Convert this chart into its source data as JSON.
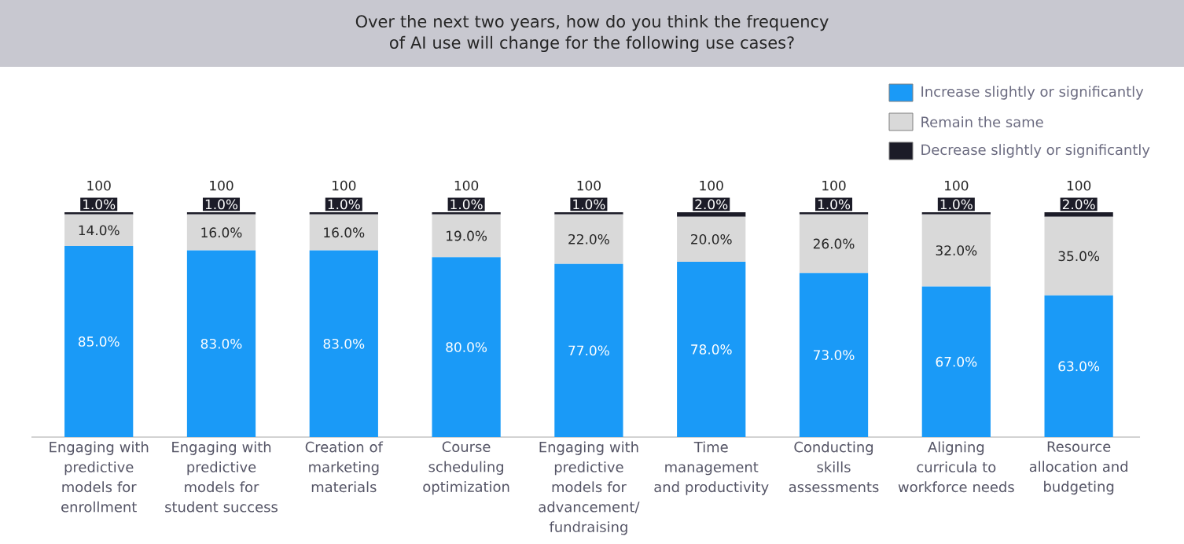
{
  "chart_data": {
    "type": "bar",
    "stacked": true,
    "title": "Over the next two years, how do you think the frequency of AI use will change for the following use cases?",
    "categories": [
      "Engaging with predictive models for enrollment",
      "Engaging with predictive models for student success",
      "Creation of marketing materials",
      "Course scheduling optimization",
      "Engaging with predictive models for advancement/ fundraising",
      "Time management and productivity",
      "Conducting skills assessments",
      "Aligning curricula to workforce needs",
      "Resource allocation and budgeting"
    ],
    "series": [
      {
        "name": "Increase slightly or significantly",
        "color": "#1a9af7",
        "values": [
          85,
          83,
          83,
          80,
          77,
          78,
          73,
          67,
          63
        ],
        "value_labels": [
          "85.0%",
          "83.0%",
          "83.0%",
          "80.0%",
          "77.0%",
          "78.0%",
          "73.0%",
          "67.0%",
          "63.0%"
        ]
      },
      {
        "name": "Remain the same",
        "color": "#d9d9d9",
        "values": [
          14,
          16,
          16,
          19,
          22,
          20,
          26,
          32,
          35
        ],
        "value_labels": [
          "14.0%",
          "16.0%",
          "16.0%",
          "19.0%",
          "22.0%",
          "20.0%",
          "26.0%",
          "32.0%",
          "35.0%"
        ]
      },
      {
        "name": "Decrease slightly or significantly",
        "color": "#1c1c28",
        "values": [
          1,
          1,
          1,
          1,
          1,
          2,
          1,
          1,
          2
        ],
        "value_labels": [
          "1.0%",
          "1.0%",
          "1.0%",
          "1.0%",
          "1.0%",
          "2.0%",
          "1.0%",
          "1.0%",
          "2.0%"
        ]
      }
    ],
    "totals": [
      "100",
      "100",
      "100",
      "100",
      "100",
      "100",
      "100",
      "100",
      "100"
    ],
    "legend": "top right"
  }
}
